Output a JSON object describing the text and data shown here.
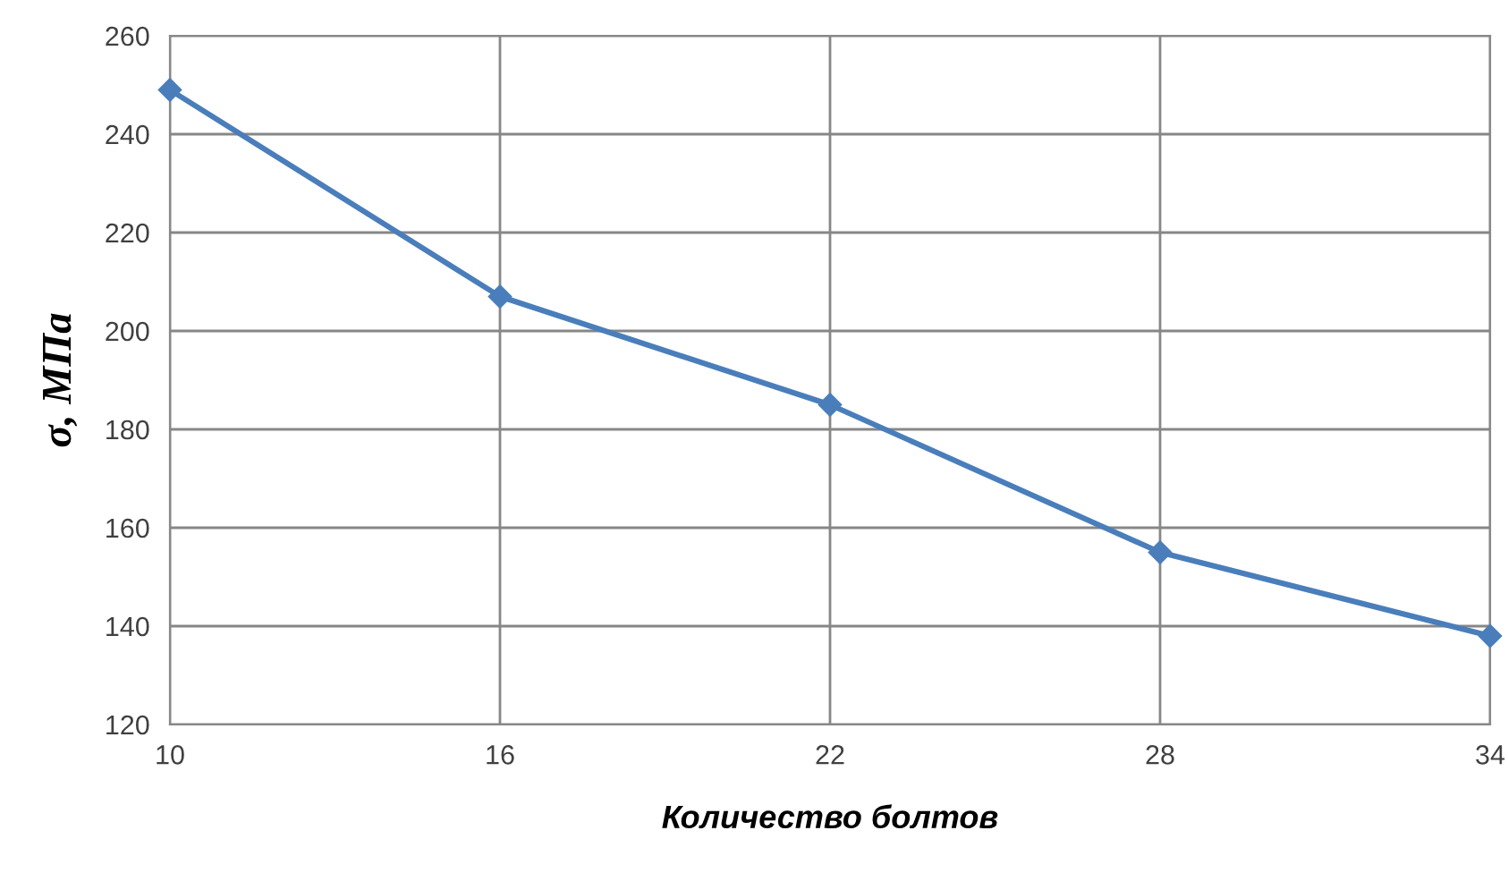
{
  "chart_data": {
    "type": "line",
    "xlabel": "Количество болтов",
    "ylabel": "σ, МПа",
    "x": [
      10,
      16,
      22,
      28,
      34
    ],
    "series": [
      {
        "color": "#4a7ebb",
        "values": [
          249,
          207,
          185,
          155,
          138
        ]
      }
    ],
    "xlim": [
      10,
      34
    ],
    "xticks": [
      10,
      16,
      22,
      28,
      34
    ],
    "ylim": [
      120,
      260
    ],
    "yticks": [
      120,
      140,
      160,
      180,
      200,
      220,
      240,
      260
    ],
    "grid": true,
    "marker": "diamond",
    "line_style": "solid",
    "legend": false
  }
}
